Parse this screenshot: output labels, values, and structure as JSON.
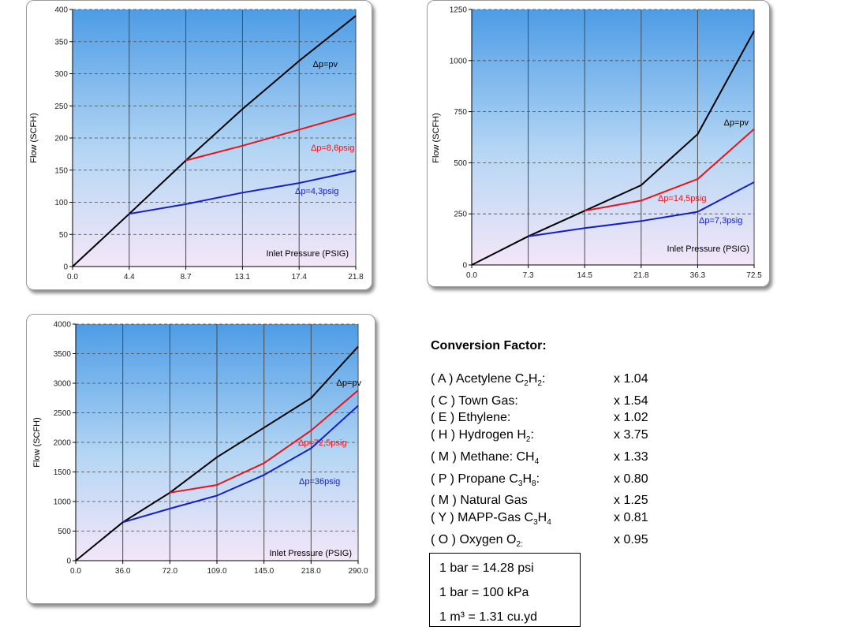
{
  "chart_data": [
    {
      "type": "line",
      "xlabel": "Inlet Pressure (PSIG)",
      "ylabel": "Flow  (SCFH)",
      "x_ticks": [
        "0.0",
        "4.4",
        "8.7",
        "13.1",
        "17.4",
        "21.8"
      ],
      "y_ticks": [
        "0",
        "50",
        "100",
        "150",
        "200",
        "250",
        "300",
        "350",
        "400"
      ],
      "ylim": [
        0,
        400
      ],
      "grid": true,
      "series": [
        {
          "name": "Δp=pv",
          "color": "#000000",
          "x": [
            0,
            4.4,
            8.7,
            13.1,
            17.4,
            21.8
          ],
          "y": [
            0,
            82,
            165,
            245,
            320,
            390
          ]
        },
        {
          "name": "Δp=8,6psig",
          "color": "#e8141c",
          "x": [
            8.7,
            13.1,
            17.4,
            21.8
          ],
          "y": [
            165,
            188,
            213,
            238
          ]
        },
        {
          "name": "Δp=4,3psig",
          "color": "#1420c8",
          "x": [
            4.4,
            8.7,
            13.1,
            17.4,
            21.8
          ],
          "y": [
            82,
            97,
            115,
            130,
            149
          ]
        }
      ]
    },
    {
      "type": "line",
      "xlabel": "Inlet Pressure (PSIG)",
      "ylabel": "Flow  (SCFH)",
      "x_ticks": [
        "0.0",
        "7.3",
        "14.5",
        "21.8",
        "36.3",
        "72.5"
      ],
      "y_ticks": [
        "0",
        "250",
        "500",
        "750",
        "1000",
        "1250"
      ],
      "ylim": [
        0,
        1250
      ],
      "grid": true,
      "series": [
        {
          "name": "Δp=pv",
          "color": "#000000",
          "x": [
            0,
            7.3,
            14.5,
            21.8,
            36.3,
            72.5
          ],
          "y": [
            0,
            140,
            265,
            390,
            640,
            1145
          ]
        },
        {
          "name": "Δp=14,5psig",
          "color": "#e8141c",
          "x": [
            14.5,
            21.8,
            36.3,
            72.5
          ],
          "y": [
            265,
            315,
            420,
            665
          ]
        },
        {
          "name": "Δp=7,3psig",
          "color": "#1420c8",
          "x": [
            7.3,
            14.5,
            21.8,
            36.3,
            72.5
          ],
          "y": [
            140,
            180,
            215,
            260,
            405
          ]
        }
      ]
    },
    {
      "type": "line",
      "xlabel": "Inlet Pressure (PSIG)",
      "ylabel": "Flow  (SCFH)",
      "x_ticks": [
        "0.0",
        "36.0",
        "72.0",
        "109.0",
        "145.0",
        "218.0",
        "290.0"
      ],
      "y_ticks": [
        "0",
        "500",
        "1000",
        "1500",
        "2000",
        "2500",
        "3000",
        "3500",
        "4000"
      ],
      "ylim": [
        0,
        4000
      ],
      "grid": true,
      "series": [
        {
          "name": "Δp=pv",
          "color": "#000000",
          "x": [
            0,
            36,
            72,
            109,
            145,
            218,
            290
          ],
          "y": [
            0,
            650,
            1150,
            1750,
            2250,
            2750,
            3620
          ]
        },
        {
          "name": "Δp=72,5psig",
          "color": "#e8141c",
          "x": [
            72,
            109,
            145,
            218,
            290
          ],
          "y": [
            1150,
            1280,
            1650,
            2200,
            2880
          ]
        },
        {
          "name": "Δp=36psig",
          "color": "#1420c8",
          "x": [
            36,
            72,
            109,
            145,
            218,
            290
          ],
          "y": [
            650,
            880,
            1100,
            1450,
            1900,
            2620
          ]
        }
      ]
    }
  ],
  "conversion": {
    "title": "Conversion Factor:",
    "rows": [
      {
        "gas": [
          "( A ) Acetylene C",
          "2",
          "H",
          "2",
          ":"
        ],
        "factor": "x 1.04"
      },
      {
        "gas": [
          "( C ) Town Gas:"
        ],
        "factor": "x 1.54"
      },
      {
        "gas": [
          "( E ) Ethylene:"
        ],
        "factor": "x 1.02"
      },
      {
        "gas": [
          "( H ) Hydrogen H",
          "2",
          ":"
        ],
        "factor": "x 3.75"
      },
      {
        "gas": [
          "( M ) Methane: CH",
          "4"
        ],
        "factor": "x 1.33"
      },
      {
        "gas": [
          "( P ) Propane C",
          "3",
          "H",
          "8",
          ":"
        ],
        "factor": "x 0.80"
      },
      {
        "gas": [
          "( M ) Natural Gas"
        ],
        "factor": "x 1.25"
      },
      {
        "gas": [
          "( Y ) MAPP-Gas C",
          "3",
          "H",
          "4"
        ],
        "factor": "x 0.81"
      },
      {
        "gas": [
          "( O ) Oxygen O",
          "2:"
        ],
        "factor": "x 0.95"
      }
    ]
  },
  "units": [
    "1 bar = 14.28 psi",
    "1 bar = 100 kPa",
    "1 m³ =  1.31 cu.yd"
  ],
  "colors": {
    "plot_top": "#4d9ce6",
    "plot_bottom": "#f4e6f8",
    "grid": "#4a4a4a",
    "black": "#000000",
    "red": "#e8141c",
    "blue": "#1420c8"
  }
}
